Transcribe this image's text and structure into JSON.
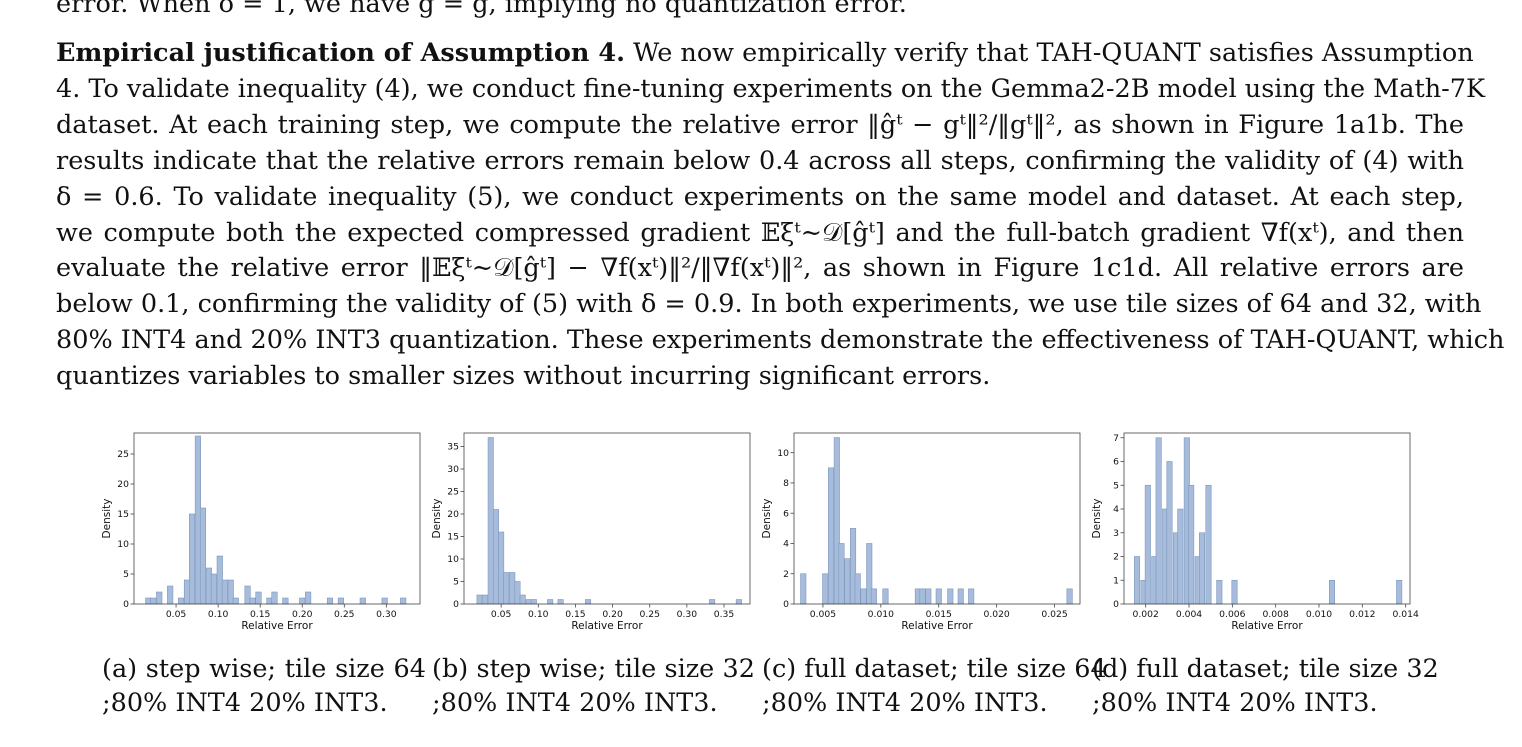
{
  "prev_line": "error. When δ = 1, we have ĝ = g, implying no quantization error.",
  "paragraph": {
    "heading": "Empirical justification of Assumption 4.",
    "lines": [
      " We now empirically verify that TAH-QUANT satisfies Assumption",
      "4. To validate inequality (4), we conduct fine-tuning experiments on the Gemma2-2B model using the Math-7K",
      "dataset. At each training step, we compute the relative error ‖ĝᵗ − gᵗ‖²/‖gᵗ‖², as shown in Figure 1a1b. The",
      "results indicate that the relative errors remain below 0.4 across all steps, confirming the validity of (4) with",
      "δ = 0.6.  To validate inequality (5), we conduct experiments on the same model and dataset.  At each step,",
      "we compute both the expected compressed gradient 𝔼ξᵗ∼𝒟[ĝᵗ] and the full-batch gradient ∇f(xᵗ), and then",
      "evaluate the relative error ‖𝔼ξᵗ∼𝒟[ĝᵗ] − ∇f(xᵗ)‖²/‖∇f(xᵗ)‖², as shown in Figure 1c1d. All relative errors are",
      "below 0.1, confirming the validity of (5) with δ = 0.9. In both experiments, we use tile sizes of 64 and 32, with",
      "80% INT4 and 20% INT3 quantization. These experiments demonstrate the effectiveness of TAH-QUANT, which",
      "quantizes variables to smaller sizes without incurring significant errors."
    ]
  },
  "chart_data": [
    {
      "type": "bar",
      "id": "a",
      "xlabel": "Relative Error",
      "ylabel": "Density",
      "xlim": [
        0.0,
        0.34
      ],
      "ylim": [
        0,
        28.5
      ],
      "xticks": [
        "0.05",
        "0.10",
        "0.15",
        "0.20",
        "0.25",
        "0.30"
      ],
      "xtick_values": [
        0.05,
        0.1,
        0.15,
        0.2,
        0.25,
        0.3
      ],
      "yticks": [
        "0",
        "5",
        "10",
        "15",
        "20",
        "25"
      ],
      "ytick_values": [
        0,
        5,
        10,
        15,
        20,
        25
      ],
      "bin_width": 0.00655,
      "x": [
        0.017,
        0.023,
        0.03,
        0.036,
        0.043,
        0.05,
        0.056,
        0.063,
        0.069,
        0.076,
        0.082,
        0.089,
        0.095,
        0.102,
        0.108,
        0.115,
        0.121,
        0.128,
        0.135,
        0.141,
        0.148,
        0.154,
        0.161,
        0.167,
        0.18,
        0.2,
        0.207,
        0.233,
        0.246,
        0.272,
        0.298,
        0.32
      ],
      "values": [
        1,
        1,
        2,
        0,
        3,
        0,
        1,
        4,
        15,
        28,
        16,
        6,
        5,
        8,
        4,
        4,
        1,
        0,
        3,
        1,
        2,
        0,
        1,
        2,
        1,
        1,
        2,
        1,
        1,
        1,
        1,
        1
      ],
      "caption": [
        "(a)  step  wise;  tile  size  64",
        ";80% INT4 20% INT3."
      ]
    },
    {
      "type": "bar",
      "id": "b",
      "xlabel": "Relative Error",
      "ylabel": "Density",
      "xlim": [
        0.0,
        0.385
      ],
      "ylim": [
        0,
        38
      ],
      "xticks": [
        "0.05",
        "0.10",
        "0.15",
        "0.20",
        "0.25",
        "0.30",
        "0.35"
      ],
      "xtick_values": [
        0.05,
        0.1,
        0.15,
        0.2,
        0.25,
        0.3,
        0.35
      ],
      "yticks": [
        "0",
        "5",
        "10",
        "15",
        "20",
        "25",
        "30",
        "35"
      ],
      "ytick_values": [
        0,
        5,
        10,
        15,
        20,
        25,
        30,
        35
      ],
      "bin_width": 0.00725,
      "x": [
        0.021,
        0.028,
        0.036,
        0.043,
        0.05,
        0.057,
        0.065,
        0.072,
        0.079,
        0.087,
        0.094,
        0.101,
        0.116,
        0.13,
        0.145,
        0.167,
        0.334,
        0.37
      ],
      "values": [
        2,
        2,
        37,
        21,
        16,
        7,
        7,
        5,
        2,
        1,
        1,
        0,
        1,
        1,
        0,
        1,
        1,
        1
      ],
      "caption": [
        "(b)  step  wise;  tile  size  32",
        ";80% INT4 20% INT3."
      ]
    },
    {
      "type": "bar",
      "id": "c",
      "xlabel": "Relative Error",
      "ylabel": "Density",
      "xlim": [
        0.0025,
        0.0272
      ],
      "ylim": [
        0,
        11.3
      ],
      "xticks": [
        "0.005",
        "0.010",
        "0.015",
        "0.020",
        "0.025"
      ],
      "xtick_values": [
        0.005,
        0.01,
        0.015,
        0.02,
        0.025
      ],
      "yticks": [
        "0",
        "2",
        "4",
        "6",
        "8",
        "10"
      ],
      "ytick_values": [
        0,
        2,
        4,
        6,
        8,
        10
      ],
      "bin_width": 0.00047,
      "x": [
        0.0033,
        0.0052,
        0.0057,
        0.0062,
        0.0066,
        0.0071,
        0.0076,
        0.008,
        0.0085,
        0.009,
        0.0094,
        0.0099,
        0.0104,
        0.0108,
        0.0132,
        0.0136,
        0.0141,
        0.015,
        0.016,
        0.0169,
        0.0178,
        0.0263
      ],
      "values": [
        2,
        2,
        9,
        11,
        4,
        3,
        5,
        2,
        1,
        4,
        1,
        0,
        1,
        0,
        1,
        1,
        1,
        1,
        1,
        1,
        1,
        1
      ],
      "caption": [
        "(c)  full  dataset;  tile  size  64",
        ";80% INT4 20% INT3."
      ]
    },
    {
      "type": "bar",
      "id": "d",
      "xlabel": "Relative Error",
      "ylabel": "Density",
      "xlim": [
        0.001,
        0.0142
      ],
      "ylim": [
        0,
        7.2
      ],
      "xticks": [
        "0.002",
        "0.004",
        "0.006",
        "0.008",
        "0.010",
        "0.012",
        "0.014"
      ],
      "xtick_values": [
        0.002,
        0.004,
        0.006,
        0.008,
        0.01,
        0.012,
        0.014
      ],
      "yticks": [
        "0",
        "1",
        "2",
        "3",
        "4",
        "5",
        "6",
        "7"
      ],
      "ytick_values": [
        0,
        1,
        2,
        3,
        4,
        5,
        6,
        7
      ],
      "bin_width": 0.00025,
      "x": [
        0.0016,
        0.0019,
        0.0021,
        0.0024,
        0.0026,
        0.0029,
        0.0031,
        0.0034,
        0.0036,
        0.0039,
        0.0041,
        0.0044,
        0.0046,
        0.0049,
        0.0051,
        0.0054,
        0.0061,
        0.0106,
        0.0137
      ],
      "values": [
        2,
        1,
        5,
        2,
        7,
        4,
        6,
        3,
        4,
        7,
        5,
        2,
        3,
        5,
        0,
        1,
        1,
        1,
        1
      ],
      "caption": [
        "(d)  full dataset; tile size 32",
        ";80% INT4 20% INT3."
      ]
    }
  ]
}
